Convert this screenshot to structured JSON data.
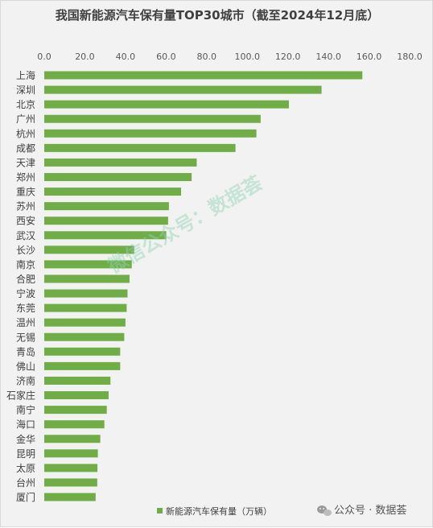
{
  "chart_data": {
    "type": "bar",
    "orientation": "horizontal",
    "title": "我国新能源汽车保有量TOP30城市（截至2024年12月底）",
    "categories": [
      "上海",
      "深圳",
      "北京",
      "广州",
      "杭州",
      "成都",
      "天津",
      "郑州",
      "重庆",
      "苏州",
      "西安",
      "武汉",
      "长沙",
      "南京",
      "合肥",
      "宁波",
      "东莞",
      "温州",
      "无锡",
      "青岛",
      "佛山",
      "济南",
      "石家庄",
      "南宁",
      "海口",
      "金华",
      "昆明",
      "太原",
      "台州",
      "厦门"
    ],
    "series": [
      {
        "name": "新能源汽车保有量（万辆）",
        "color": "#70ad47",
        "values": [
          156.7,
          136.6,
          120.5,
          106.6,
          104.5,
          94.2,
          75.1,
          72.6,
          67.4,
          61.4,
          61.0,
          60.1,
          44.3,
          43.1,
          42.0,
          41.0,
          40.6,
          40.0,
          39.4,
          37.4,
          37.4,
          32.6,
          31.7,
          30.8,
          29.6,
          27.6,
          26.4,
          26.2,
          26.1,
          25.3
        ]
      }
    ],
    "x_ticks": [
      "0.0",
      "20.0",
      "40.0",
      "60.0",
      "80.0",
      "100.0",
      "120.0",
      "140.0",
      "160.0",
      "180.0"
    ],
    "xlim": [
      0,
      180
    ],
    "x_axis_position": "top",
    "grid": false,
    "legend_position": "bottom"
  },
  "watermark": {
    "text": "微信公众号：数据荟",
    "color": "#8fd3b4"
  },
  "credit": {
    "icon": "wechat-icon",
    "text": "公众号 · 数据荟"
  }
}
